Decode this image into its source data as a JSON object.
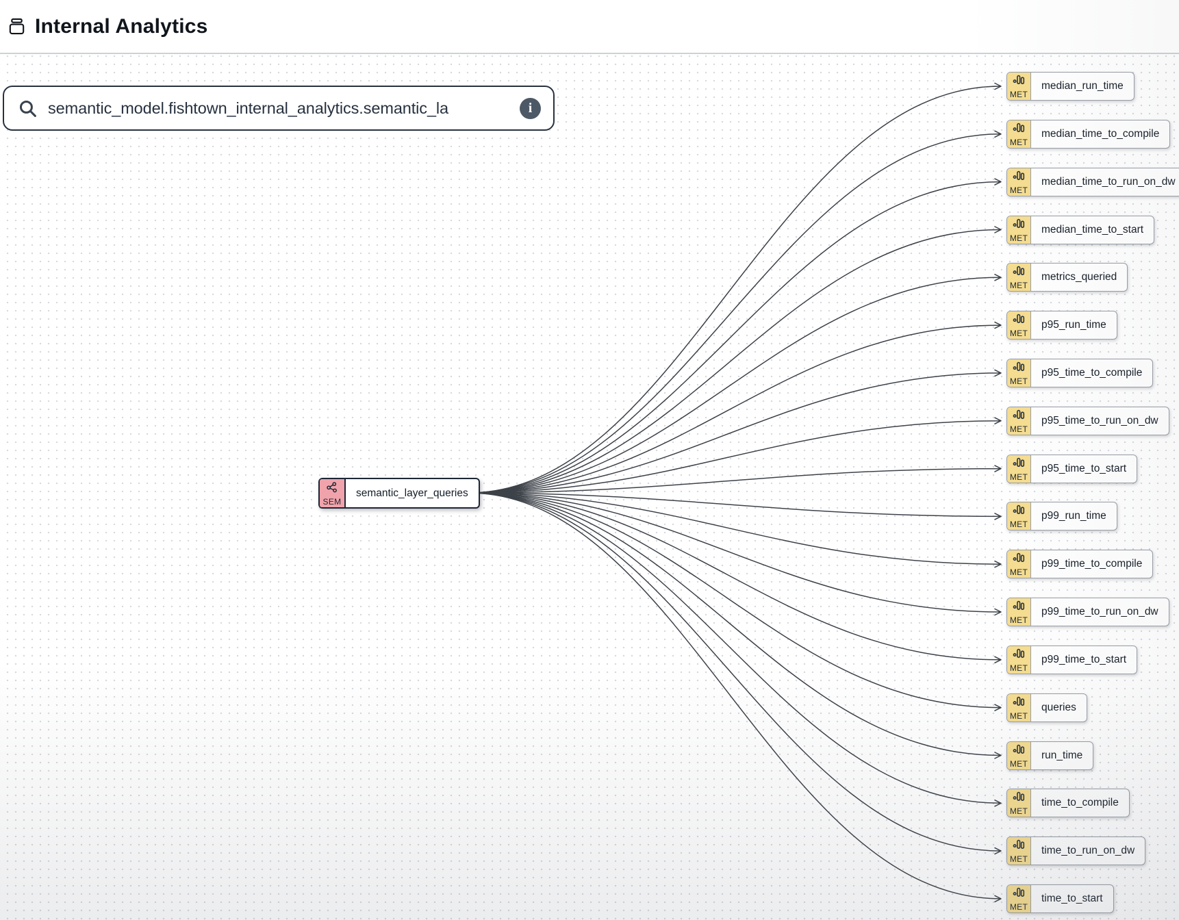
{
  "header": {
    "title": "Internal Analytics",
    "icon": "archive-box-icon"
  },
  "search": {
    "value": "semantic_model.fishtown_internal_analytics.semantic_la",
    "search_icon": "magnifier-icon",
    "info_icon": "info-icon",
    "info_glyph": "i"
  },
  "graph": {
    "source_node": {
      "type_label": "SEM",
      "label": "semantic_layer_queries",
      "icon": "share-network-icon",
      "badge_color": "#f1a3ab"
    },
    "metric_type_label": "MET",
    "metric_icon": "bar-chart-icon",
    "metric_badge_color": "#f6dd90",
    "metrics": [
      "median_run_time",
      "median_time_to_compile",
      "median_time_to_run_on_dw",
      "median_time_to_start",
      "metrics_queried",
      "p95_run_time",
      "p95_time_to_compile",
      "p95_time_to_run_on_dw",
      "p95_time_to_start",
      "p99_run_time",
      "p99_time_to_compile",
      "p99_time_to_run_on_dw",
      "p99_time_to_start",
      "queries",
      "run_time",
      "time_to_compile",
      "time_to_run_on_dw",
      "time_to_start"
    ]
  },
  "colors": {
    "sem_badge": "#f1a3ab",
    "met_badge": "#f6dd90",
    "node_border_dark": "#1d2634",
    "node_border_light": "#999fa7",
    "edge": "#3d4249",
    "header_divider": "#ccd1d6",
    "canvas_dot": "#d5d8dd",
    "info_circle": "#4c5866"
  }
}
